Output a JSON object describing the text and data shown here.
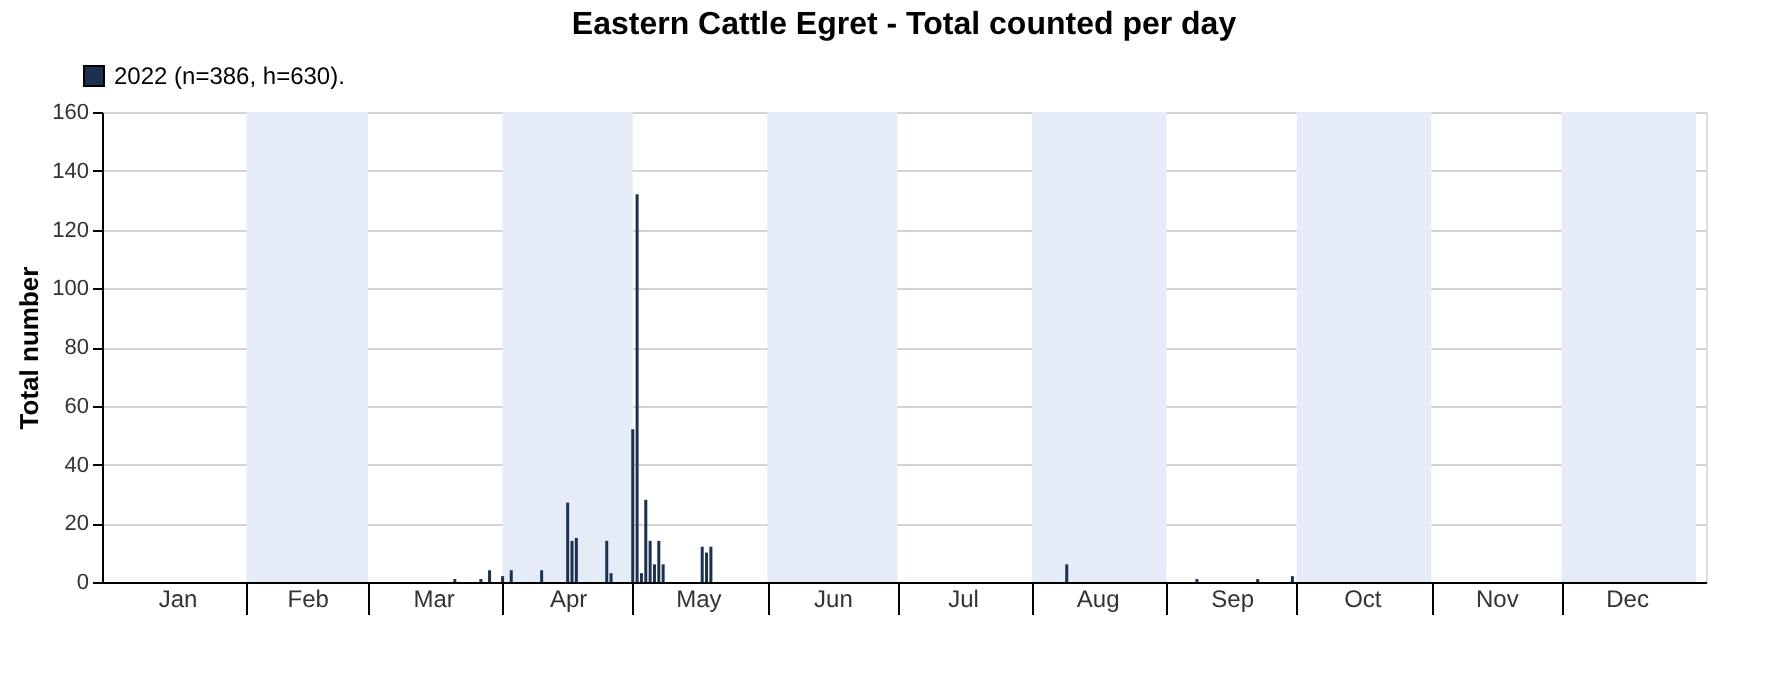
{
  "chart_data": {
    "type": "bar",
    "title": "Eastern Cattle Egret - Total counted per day",
    "ylabel": "Total number",
    "x": [
      "2022-03-21",
      "2022-03-27",
      "2022-03-29",
      "2022-04-01",
      "2022-04-03",
      "2022-04-10",
      "2022-04-16",
      "2022-04-17",
      "2022-04-18",
      "2022-04-25",
      "2022-04-26",
      "2022-05-01",
      "2022-05-02",
      "2022-05-03",
      "2022-05-04",
      "2022-05-05",
      "2022-05-06",
      "2022-05-07",
      "2022-05-08",
      "2022-05-17",
      "2022-05-18",
      "2022-05-19",
      "2022-08-09",
      "2022-09-08",
      "2022-09-22",
      "2022-09-30"
    ],
    "series": [
      {
        "name": "2022 (n=386, h=630).",
        "color": "#1c3150",
        "values": [
          1,
          1,
          4,
          2,
          4,
          4,
          27,
          14,
          15,
          14,
          3,
          52,
          132,
          3,
          28,
          14,
          6,
          14,
          6,
          12,
          10,
          12,
          6,
          1,
          1,
          2
        ]
      }
    ],
    "xlim": [
      "2022-01-01",
      "2023-01-01"
    ],
    "xticks": [
      {
        "value": "2022-01-16",
        "label": "Jan"
      },
      {
        "value": "2022-02-01",
        "label": null
      },
      {
        "value": "2022-02-15",
        "label": "Feb"
      },
      {
        "value": "2022-03-01",
        "label": null
      },
      {
        "value": "2022-03-16",
        "label": "Mar"
      },
      {
        "value": "2022-04-01",
        "label": null
      },
      {
        "value": "2022-04-16",
        "label": "Apr"
      },
      {
        "value": "2022-05-01",
        "label": null
      },
      {
        "value": "2022-05-16",
        "label": "May"
      },
      {
        "value": "2022-06-01",
        "label": null
      },
      {
        "value": "2022-06-16",
        "label": "Jun"
      },
      {
        "value": "2022-07-01",
        "label": null
      },
      {
        "value": "2022-07-16",
        "label": "Jul"
      },
      {
        "value": "2022-08-01",
        "label": null
      },
      {
        "value": "2022-08-16",
        "label": "Aug"
      },
      {
        "value": "2022-09-01",
        "label": null
      },
      {
        "value": "2022-09-16",
        "label": "Sep"
      },
      {
        "value": "2022-10-01",
        "label": null
      },
      {
        "value": "2022-10-16",
        "label": "Oct"
      },
      {
        "value": "2022-11-01",
        "label": null
      },
      {
        "value": "2022-11-16",
        "label": "Nov"
      },
      {
        "value": "2022-12-01",
        "label": null
      },
      {
        "value": "2022-12-16",
        "label": "Dec"
      }
    ],
    "ylim": [
      0,
      160
    ],
    "yticks": [
      0,
      20,
      40,
      60,
      80,
      100,
      120,
      140,
      160
    ],
    "bands": [
      {
        "axis": "x",
        "from": "2022-02-01",
        "to": "2022-03-01",
        "color": "#e6ecf7"
      },
      {
        "axis": "x",
        "from": "2022-04-01",
        "to": "2022-05-01",
        "color": "#e6ecf7"
      },
      {
        "axis": "x",
        "from": "2022-06-01",
        "to": "2022-07-01",
        "color": "#e6ecf7"
      },
      {
        "axis": "x",
        "from": "2022-08-01",
        "to": "2022-09-01",
        "color": "#e6ecf7"
      },
      {
        "axis": "x",
        "from": "2022-10-01",
        "to": "2022-11-01",
        "color": "#e6ecf7"
      },
      {
        "axis": "x",
        "from": "2022-12-01",
        "to": "2023-01-01",
        "color": "#e6ecf7"
      }
    ],
    "grid": "y",
    "legend": "top left"
  }
}
